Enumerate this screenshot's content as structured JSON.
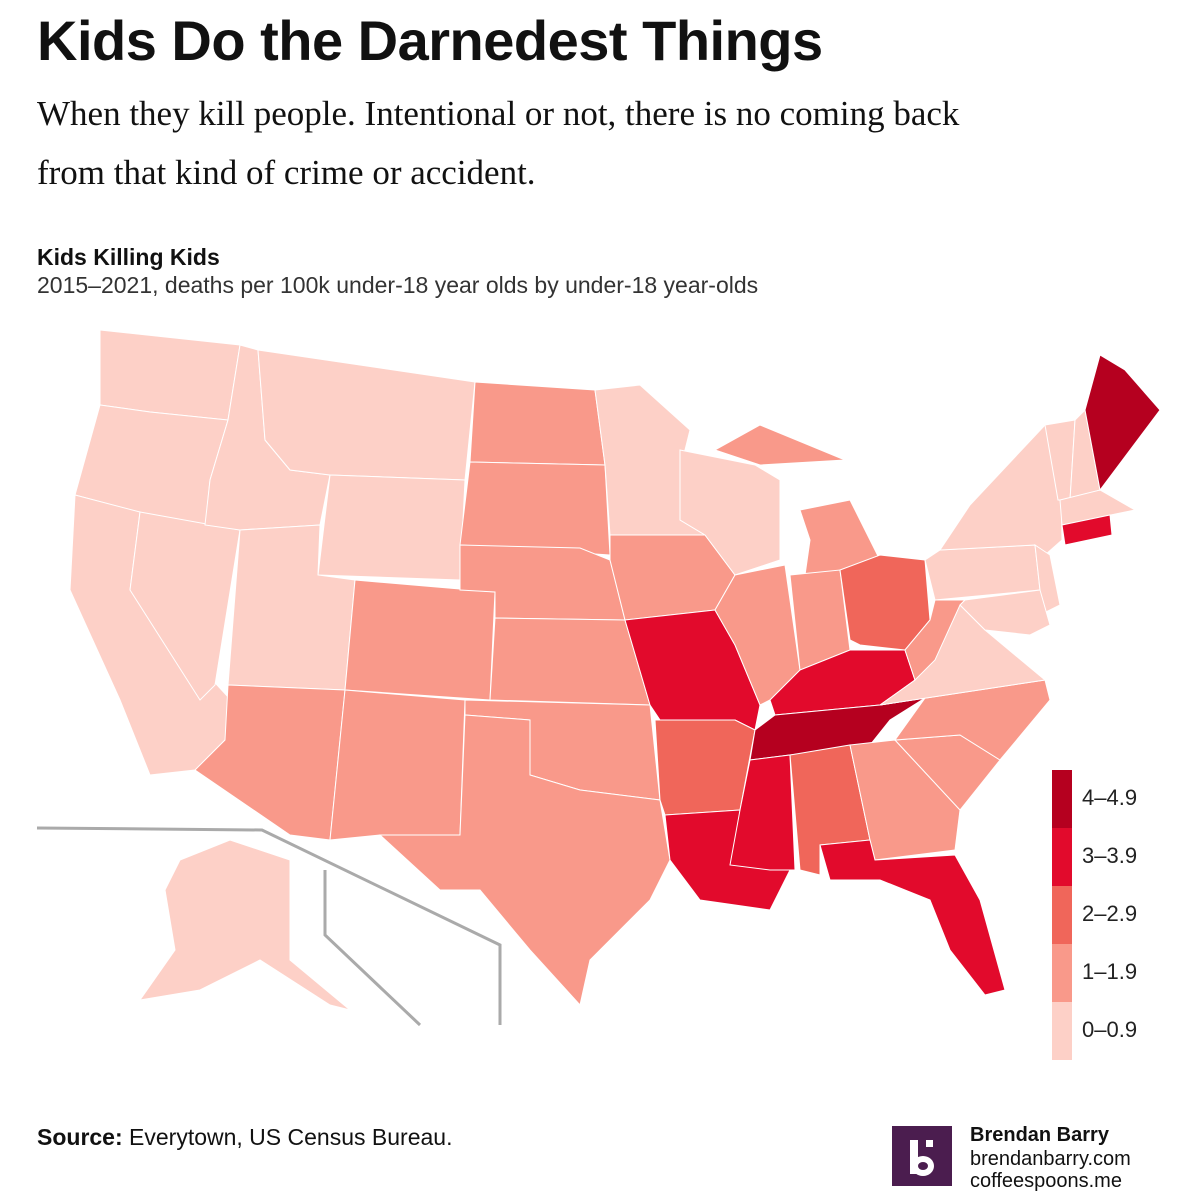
{
  "header": {
    "title": "Kids Do the Darnedest Things",
    "subtitle": "When they kill people. Intentional or not, there is no coming back from that kind of crime or accident."
  },
  "chart_data": {
    "type": "choropleth",
    "title": "Kids Killing Kids",
    "subtitle": "2015–2021, deaths per 100k under-18 year olds by under-18 year-olds",
    "legend": [
      {
        "from": 4,
        "to": 4.9,
        "label": "4–4.9",
        "color": "#b5001f"
      },
      {
        "from": 3,
        "to": 3.9,
        "label": "3–3.9",
        "color": "#e20a2c"
      },
      {
        "from": 2,
        "to": 2.9,
        "label": "2–2.9",
        "color": "#f0665a"
      },
      {
        "from": 1,
        "to": 1.9,
        "label": "1–1.9",
        "color": "#f9998a"
      },
      {
        "from": 0,
        "to": 0.9,
        "label": "0–0.9",
        "color": "#fdd0c7"
      }
    ],
    "values": [
      0.5,
      0.5,
      0.5,
      0.5,
      0.5,
      0.5,
      0.5,
      0.5,
      1.5,
      1.5,
      1.5,
      1.5,
      1.5,
      1.5,
      1.5,
      1.5,
      1.5,
      0.5,
      1.5,
      3.5,
      2.5,
      3.5,
      0.5,
      1.5,
      1.5,
      1.5,
      1.5,
      2.5,
      3.5,
      4.5,
      3.5,
      2.5,
      1.5,
      3.5,
      1.5,
      1.5,
      0.5,
      1.5,
      0.5,
      0.5,
      0.5,
      0.5,
      0.5,
      0.5,
      0.5,
      3.5,
      4.5,
      0.5
    ]
  },
  "footer": {
    "source_label": "Source:",
    "source": "Everytown, US Census Bureau.",
    "author": "Brendan Barry",
    "site1": "brendanbarry.com",
    "site2": "coffeespoons.me"
  }
}
